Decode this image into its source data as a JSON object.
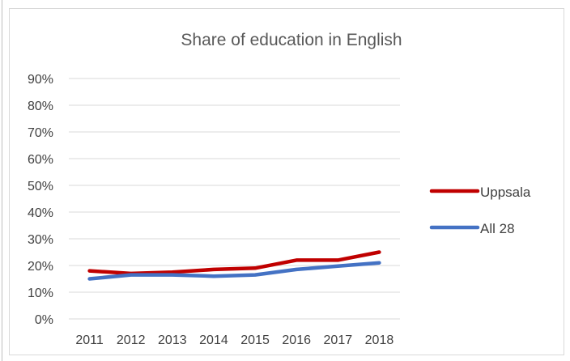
{
  "chart_data": {
    "type": "line",
    "title": "Share of education in English",
    "xlabel": "",
    "ylabel": "",
    "categories": [
      "2011",
      "2012",
      "2013",
      "2014",
      "2015",
      "2016",
      "2017",
      "2018"
    ],
    "ylim": [
      0,
      90
    ],
    "yticks": [
      "0%",
      "10%",
      "20%",
      "30%",
      "40%",
      "50%",
      "60%",
      "70%",
      "80%",
      "90%"
    ],
    "grid": true,
    "legend_position": "right",
    "series": [
      {
        "name": "Uppsala",
        "color": "#c00000",
        "values": [
          18,
          17,
          17.5,
          18.5,
          19,
          22,
          22,
          25
        ]
      },
      {
        "name": "All 28",
        "color": "#4472c4",
        "values": [
          15,
          16.5,
          16.5,
          16,
          16.5,
          18.5,
          19.8,
          21
        ]
      }
    ]
  }
}
